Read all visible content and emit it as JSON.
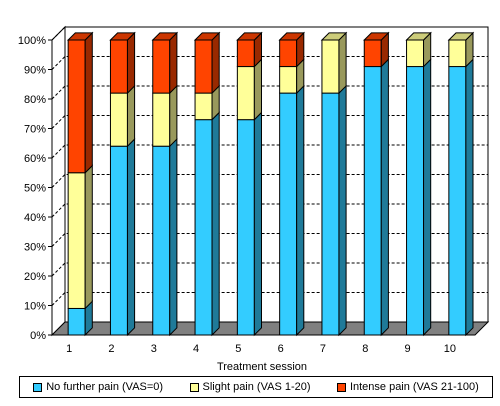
{
  "chart_data": {
    "type": "bar",
    "stacked": true,
    "percent_scale": true,
    "three_d": true,
    "xlabel": "Treatment session",
    "ylabel": "",
    "categories": [
      "1",
      "2",
      "3",
      "4",
      "5",
      "6",
      "7",
      "8",
      "9",
      "10"
    ],
    "yticks": [
      "0%",
      "10%",
      "20%",
      "30%",
      "40%",
      "50%",
      "60%",
      "70%",
      "80%",
      "90%",
      "100%"
    ],
    "ylim": [
      0,
      100
    ],
    "grid": true,
    "legend_position": "bottom",
    "series": [
      {
        "name": "No further pain (VAS=0)",
        "color": "#33CCFF",
        "values": [
          9,
          64,
          64,
          73,
          73,
          82,
          82,
          91,
          91,
          91
        ]
      },
      {
        "name": "Slight pain (VAS 1-20)",
        "color": "#FFFF99",
        "values": [
          46,
          18,
          18,
          9,
          18,
          9,
          18,
          0,
          9,
          9
        ]
      },
      {
        "name": "Intense pain (VAS 21-100)",
        "color": "#FF4400",
        "values": [
          45,
          18,
          18,
          18,
          9,
          9,
          0,
          9,
          0,
          0
        ]
      }
    ]
  }
}
